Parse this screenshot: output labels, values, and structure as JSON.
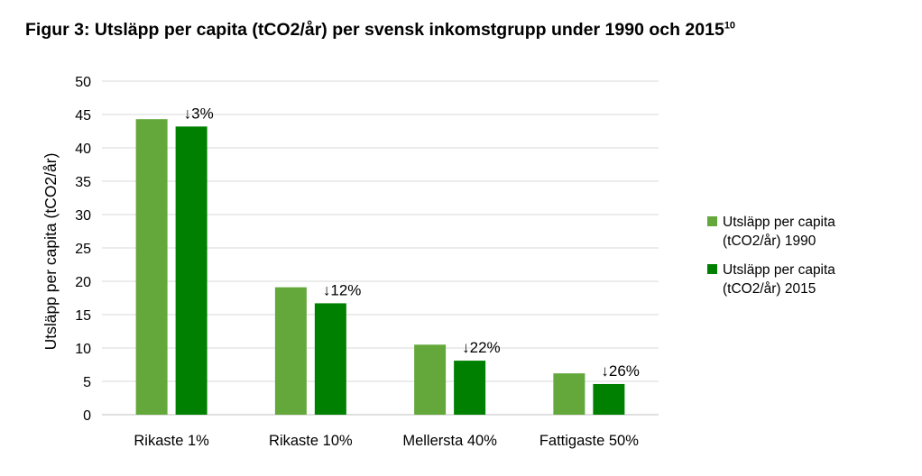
{
  "title": {
    "text": "Figur 3: Utsläpp per capita (tCO2/år) per svensk inkomstgrupp under 1990 och 2015",
    "footnote": "10"
  },
  "chart_data": {
    "type": "bar",
    "categories": [
      "Rikaste 1%",
      "Rikaste 10%",
      "Mellersta 40%",
      "Fattigaste 50%"
    ],
    "series": [
      {
        "name": "Utsläpp per capita (tCO2/år) 1990",
        "legend_lines": [
          "Utsläpp per capita",
          "(tCO2/år) 1990"
        ],
        "color": "#64a83b",
        "values": [
          44.3,
          19.1,
          10.5,
          6.2
        ]
      },
      {
        "name": "Utsläpp per capita (tCO2/år) 2015",
        "legend_lines": [
          "Utsläpp per capita",
          "(tCO2/år) 2015"
        ],
        "color": "#008000",
        "values": [
          43.2,
          16.7,
          8.1,
          4.6
        ]
      }
    ],
    "annotations": [
      "↓3%",
      "↓12%",
      "↓22%",
      "↓26%"
    ],
    "ylabel": "Utsläpp per capita (tCO2/år)",
    "xlabel": "",
    "ylim": [
      0,
      50
    ],
    "yticks": [
      0,
      5,
      10,
      15,
      20,
      25,
      30,
      35,
      40,
      45,
      50
    ],
    "grid": true,
    "legend_position": "right"
  }
}
